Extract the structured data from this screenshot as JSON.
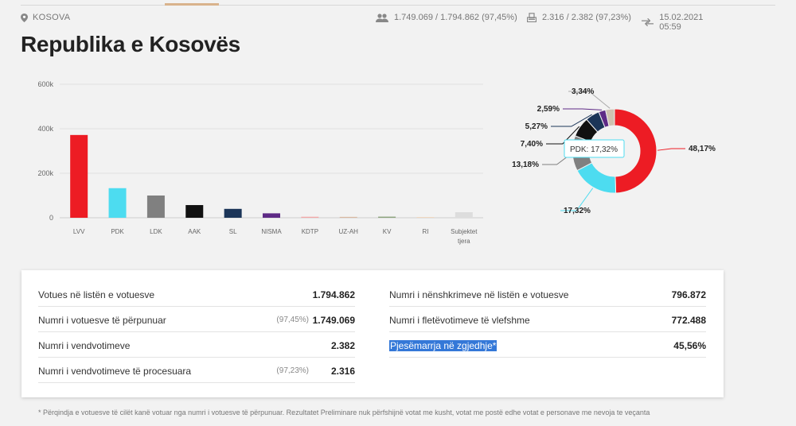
{
  "topbar": {
    "location": "KOSOVA",
    "voters_stat": "1.749.069 / 1.794.862 (97,45%)",
    "stations_stat": "2.316 / 2.382 (97,23%)",
    "updated": "15.02.2021 05:59",
    "icons": [
      "location-pin-icon",
      "people-icon",
      "ballot-box-icon",
      "sync-arrows-icon"
    ]
  },
  "page_title": "Republika e Kosovës",
  "chart_data": [
    {
      "type": "bar",
      "categories": [
        "LVV",
        "PDK",
        "LDK",
        "AAK",
        "SL",
        "NISMA",
        "KDTP",
        "UZ-AH",
        "KV",
        "RI",
        "Subjektet tjera"
      ],
      "values": [
        372000,
        133000,
        100000,
        57000,
        40000,
        20000,
        4500,
        4000,
        5000,
        3000,
        25000
      ],
      "colors": [
        "#ed1c24",
        "#4ddcf0",
        "#808080",
        "#111111",
        "#1b3558",
        "#5e2a86",
        "#f3a8a8",
        "#d9b8a0",
        "#8aa37b",
        "#f0d4b8",
        "#dddddd"
      ],
      "ylim": [
        0,
        600000
      ],
      "yticks": [
        "0",
        "200k",
        "400k",
        "600k"
      ],
      "grid": true
    },
    {
      "type": "pie",
      "labels": [
        "LVV",
        "PDK",
        "LDK",
        "AAK",
        "SL",
        "NISMA",
        "Subjektet tjera"
      ],
      "values": [
        48.17,
        17.32,
        13.18,
        7.4,
        5.27,
        2.59,
        3.34
      ],
      "value_labels": [
        "48,17%",
        "17,32%",
        "13,18%",
        "7,40%",
        "5,27%",
        "2,59%",
        "3,34%"
      ],
      "colors": [
        "#ed1c24",
        "#4ddcf0",
        "#808080",
        "#111111",
        "#1b3558",
        "#5e2a86",
        "#cfc2b0"
      ],
      "tooltip": "PDK: 17,32%"
    }
  ],
  "stats_left": [
    {
      "label": "Votues në listën e votuesve",
      "pct": "",
      "value": "1.794.862"
    },
    {
      "label": "Numri i votuesve të përpunuar",
      "pct": "(97,45%)",
      "value": "1.749.069"
    },
    {
      "label": "Numri i vendvotimeve",
      "pct": "",
      "value": "2.382"
    },
    {
      "label": "Numri i vendvotimeve të procesuara",
      "pct": "(97,23%)",
      "value": "2.316"
    }
  ],
  "stats_right": [
    {
      "label": "Numri i nënshkrimeve në listën e votuesve",
      "value": "796.872"
    },
    {
      "label": "Numri i fletëvotimeve të vlefshme",
      "value": "772.488"
    },
    {
      "label": "Pjesëmarrja në zgjedhje*",
      "value": "45,56%"
    }
  ],
  "footnote": "* Përqindja e votuesve të cilët kanë votuar nga numri i votuesve të përpunuar. Rezultatet Preliminare nuk përfshijnë votat me kusht, votat me postë edhe votat e personave me nevoja te veçanta"
}
